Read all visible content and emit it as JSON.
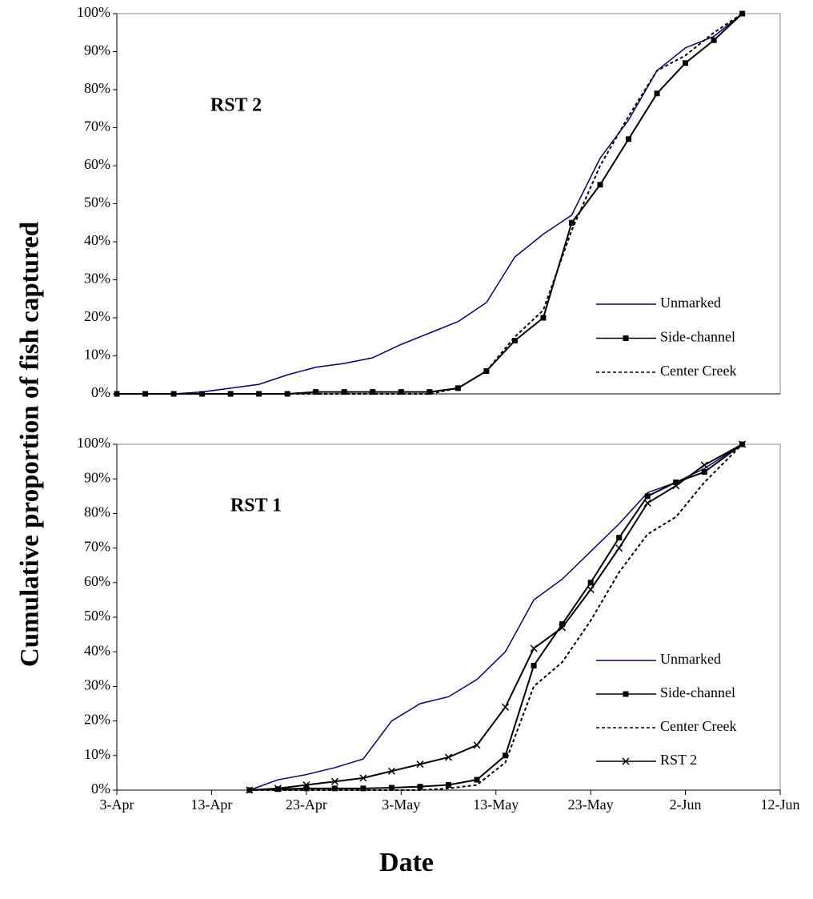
{
  "axis_labels": {
    "y": "Cumulative proportion of fish captured",
    "x": "Date"
  },
  "chart_data": [
    {
      "type": "line",
      "annotation": "RST 2",
      "x": [
        "3-Apr",
        "6-Apr",
        "9-Apr",
        "12-Apr",
        "15-Apr",
        "18-Apr",
        "21-Apr",
        "24-Apr",
        "27-Apr",
        "30-Apr",
        "3-May",
        "6-May",
        "9-May",
        "12-May",
        "15-May",
        "18-May",
        "21-May",
        "24-May",
        "27-May",
        "30-May",
        "2-Jun",
        "5-Jun",
        "8-Jun"
      ],
      "series": [
        {
          "name": "Unmarked",
          "color": "#000080",
          "marker": "none",
          "dashed": false,
          "values": [
            0,
            0,
            0,
            0.5,
            1.5,
            2.5,
            5,
            7,
            8,
            9.5,
            13,
            16,
            19,
            24,
            36,
            42,
            47,
            62,
            72,
            85,
            91,
            94,
            100
          ]
        },
        {
          "name": "Side-channel",
          "color": "#000000",
          "marker": "square",
          "dashed": false,
          "values": [
            0,
            0,
            0,
            0,
            0,
            0,
            0,
            0.5,
            0.5,
            0.5,
            0.5,
            0.5,
            1.5,
            6,
            14,
            20,
            45,
            55,
            67,
            79,
            87,
            93,
            100
          ]
        },
        {
          "name": "Center Creek",
          "color": "#000000",
          "marker": "none",
          "dashed": true,
          "values": [
            0,
            0,
            0,
            0,
            0,
            0,
            0,
            0,
            0,
            0,
            0,
            0,
            1.5,
            6,
            15,
            22,
            43,
            60,
            73,
            85,
            89,
            95,
            100
          ]
        }
      ],
      "xlim": [
        "3-Apr",
        "12-Jun"
      ],
      "ylim": [
        0,
        100
      ],
      "yticks": [
        {
          "value": 0,
          "label": "0%"
        },
        {
          "value": 10,
          "label": "10%"
        },
        {
          "value": 20,
          "label": "20%"
        },
        {
          "value": 30,
          "label": "30%"
        },
        {
          "value": 40,
          "label": "40%"
        },
        {
          "value": 50,
          "label": "50%"
        },
        {
          "value": 60,
          "label": "60%"
        },
        {
          "value": 70,
          "label": "70%"
        },
        {
          "value": 80,
          "label": "80%"
        },
        {
          "value": 90,
          "label": "90%"
        },
        {
          "value": 100,
          "label": "100%"
        }
      ]
    },
    {
      "type": "line",
      "annotation": "RST 1",
      "x": [
        "17-Apr",
        "20-Apr",
        "23-Apr",
        "26-Apr",
        "29-Apr",
        "2-May",
        "5-May",
        "8-May",
        "11-May",
        "14-May",
        "17-May",
        "20-May",
        "23-May",
        "26-May",
        "29-May",
        "1-Jun",
        "4-Jun",
        "8-Jun"
      ],
      "series": [
        {
          "name": "Unmarked",
          "color": "#000080",
          "marker": "none",
          "dashed": false,
          "values": [
            0,
            3,
            4.5,
            6.5,
            9,
            20,
            25,
            27,
            32,
            40,
            55,
            61,
            69,
            77,
            86,
            89,
            93,
            100
          ]
        },
        {
          "name": "Side-channel",
          "color": "#000000",
          "marker": "square",
          "dashed": false,
          "values": [
            0,
            0.3,
            0.5,
            0.5,
            0.5,
            0.7,
            1,
            1.5,
            3,
            10,
            36,
            48,
            60,
            73,
            85,
            89,
            92,
            100
          ]
        },
        {
          "name": "Center Creek",
          "color": "#000000",
          "marker": "none",
          "dashed": true,
          "values": [
            0,
            0,
            0,
            0,
            0,
            0,
            0,
            0.5,
            1.5,
            8,
            30,
            37,
            49,
            63,
            74,
            79,
            89,
            100
          ]
        },
        {
          "name": "RST 2",
          "color": "#000000",
          "marker": "x",
          "dashed": false,
          "values": [
            0,
            0.5,
            1.5,
            2.5,
            3.5,
            5.5,
            7.5,
            9.5,
            13,
            24,
            41,
            47,
            58,
            70,
            83,
            88,
            94,
            100
          ]
        }
      ],
      "xlim": [
        "3-Apr",
        "12-Jun"
      ],
      "ylim": [
        0,
        100
      ],
      "xticks": [
        "3-Apr",
        "13-Apr",
        "23-Apr",
        "3-May",
        "13-May",
        "23-May",
        "2-Jun",
        "12-Jun"
      ],
      "yticks": [
        {
          "value": 0,
          "label": "0%"
        },
        {
          "value": 10,
          "label": "10%"
        },
        {
          "value": 20,
          "label": "20%"
        },
        {
          "value": 30,
          "label": "30%"
        },
        {
          "value": 40,
          "label": "40%"
        },
        {
          "value": 50,
          "label": "50%"
        },
        {
          "value": 60,
          "label": "60%"
        },
        {
          "value": 70,
          "label": "70%"
        },
        {
          "value": 80,
          "label": "80%"
        },
        {
          "value": 90,
          "label": "90%"
        },
        {
          "value": 100,
          "label": "100%"
        }
      ]
    }
  ]
}
